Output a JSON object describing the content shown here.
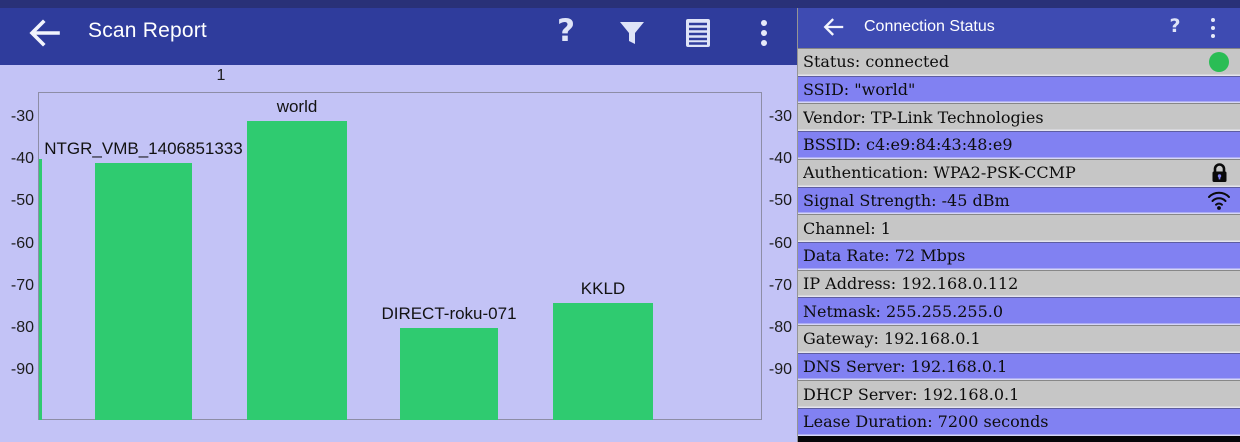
{
  "colors": {
    "status_strip": "#293178",
    "left_header_bg": "#2f3c9c",
    "right_header_bg": "#3e4bb2",
    "chart_bg": "#c3c3f6",
    "bar_green": "#2fcb70",
    "row_gray": "#c6c6c6",
    "row_purple": "#8181f2",
    "connected_dot_green": "#2abd55"
  },
  "scan_report": {
    "title": "Scan Report",
    "help_glyph": "?",
    "actions": [
      "help-icon",
      "filter-icon",
      "legend-icon",
      "overflow-menu-icon"
    ]
  },
  "chart_data": {
    "type": "bar",
    "title": "",
    "xlabel": "",
    "ylabel": "",
    "top_axis_tick_labels": [
      "1"
    ],
    "y_tick_labels": [
      "-30",
      "-40",
      "-50",
      "-60",
      "-70",
      "-80",
      "-90"
    ],
    "y_ticks": [
      -30,
      -40,
      -50,
      -60,
      -70,
      -80,
      -90
    ],
    "ylim": [
      -102,
      -24
    ],
    "unit": "dBm",
    "grid": false,
    "series": [
      {
        "label": "NTGR_VMB_1406851333",
        "value": -41
      },
      {
        "label": "world",
        "value": -31
      },
      {
        "label": "DIRECT-roku-071",
        "value": -80
      },
      {
        "label": "KKLD",
        "value": -74
      }
    ],
    "clipped_bar_left_edge": {
      "value": -40
    },
    "right_axis_tick_labels": [
      "-30",
      "-40",
      "-50",
      "-60",
      "-70",
      "-80",
      "-90"
    ]
  },
  "connection_status": {
    "title": "Connection Status",
    "help_glyph": "?",
    "rows": [
      {
        "key": "status",
        "label": "Status: connected",
        "icon": "status-connected-icon"
      },
      {
        "key": "ssid",
        "label": "SSID: \"world\""
      },
      {
        "key": "vendor",
        "label": "Vendor: TP-Link Technologies"
      },
      {
        "key": "bssid",
        "label": "BSSID: c4:e9:84:43:48:e9"
      },
      {
        "key": "authentication",
        "label": "Authentication: WPA2-PSK-CCMP",
        "icon": "lock-icon"
      },
      {
        "key": "signal-strength",
        "label": "Signal Strength: -45 dBm",
        "icon": "wifi-signal-icon"
      },
      {
        "key": "channel",
        "label": "Channel: 1"
      },
      {
        "key": "data-rate",
        "label": "Data Rate: 72 Mbps"
      },
      {
        "key": "ip-address",
        "label": "IP Address: 192.168.0.112"
      },
      {
        "key": "netmask",
        "label": "Netmask: 255.255.255.0"
      },
      {
        "key": "gateway",
        "label": "Gateway: 192.168.0.1"
      },
      {
        "key": "dns-server",
        "label": "DNS Server: 192.168.0.1"
      },
      {
        "key": "dhcp-server",
        "label": "DHCP Server: 192.168.0.1"
      },
      {
        "key": "lease-duration",
        "label": "Lease Duration: 7200 seconds"
      }
    ]
  }
}
